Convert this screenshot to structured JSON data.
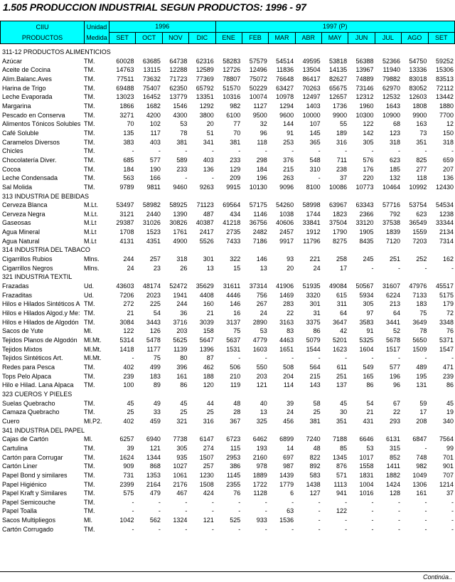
{
  "title": "1.505  PRODUCCION  INDUSTRIAL  SEGUN PRODUCTOS:  1996 - 97",
  "header": {
    "ciiu": "CIIU",
    "productos": "PRODUCTOS",
    "unidad": "Unidad",
    "medida": "Medida",
    "year1": "1996",
    "year2": "1997 (P)",
    "months": [
      "SET",
      "OCT",
      "NOV",
      "DIC",
      "ENE",
      "FEB",
      "MAR",
      "ABR",
      "MAY",
      "JUN",
      "JUL",
      "AGO",
      "SET"
    ]
  },
  "sections": [
    {
      "title": "311-12 PRODUCTOS ALIMENTICIOS",
      "rows": [
        {
          "name": "Azúcar",
          "unit": "TM.",
          "values": [
            "60028",
            "63685",
            "64738",
            "62316",
            "58283",
            "57579",
            "54514",
            "49595",
            "53818",
            "56388",
            "52366",
            "54750",
            "59252"
          ]
        },
        {
          "name": "Aceite de Cocina",
          "unit": "TM.",
          "values": [
            "14763",
            "13115",
            "12288",
            "12589",
            "12726",
            "12496",
            "11836",
            "13504",
            "14135",
            "13967",
            "11940",
            "13336",
            "15306"
          ]
        },
        {
          "name": "Alim.Balanc.Aves",
          "unit": "TM.",
          "values": [
            "77511",
            "73632",
            "71723",
            "77369",
            "78807",
            "75072",
            "76648",
            "86417",
            "82627",
            "74889",
            "79882",
            "83018",
            "83513"
          ]
        },
        {
          "name": "Harina de Trigo",
          "unit": "TM.",
          "values": [
            "69488",
            "75407",
            "62350",
            "65792",
            "51570",
            "50229",
            "63427",
            "70263",
            "65675",
            "73146",
            "62970",
            "83052",
            "72112"
          ]
        },
        {
          "name": "Leche Evaporada",
          "unit": "TM.",
          "values": [
            "13023",
            "16452",
            "13779",
            "13351",
            "10316",
            "10074",
            "10978",
            "12497",
            "12657",
            "12312",
            "12532",
            "12603",
            "13442"
          ]
        },
        {
          "name": "Margarina",
          "unit": "TM.",
          "values": [
            "1866",
            "1682",
            "1546",
            "1292",
            "982",
            "1127",
            "1294",
            "1403",
            "1736",
            "1960",
            "1643",
            "1808",
            "1880"
          ]
        },
        {
          "name": "Pescado en Conserva",
          "unit": "TM.",
          "values": [
            "3271",
            "4200",
            "4300",
            "3800",
            "6100",
            "9500",
            "9600",
            "10000",
            "9900",
            "10300",
            "10900",
            "9900",
            "7700"
          ]
        },
        {
          "name": "Alimentos Tónicos Solubles",
          "unit": "TM.",
          "values": [
            "70",
            "102",
            "53",
            "20",
            "77",
            "32",
            "144",
            "107",
            "55",
            "122",
            "68",
            "163",
            "12"
          ]
        },
        {
          "name": "Café Soluble",
          "unit": "TM.",
          "values": [
            "135",
            "117",
            "78",
            "51",
            "70",
            "96",
            "91",
            "145",
            "189",
            "142",
            "123",
            "73",
            "150"
          ]
        },
        {
          "name": "Caramelos Diversos",
          "unit": "TM.",
          "values": [
            "383",
            "403",
            "381",
            "341",
            "381",
            "118",
            "253",
            "365",
            "316",
            "305",
            "318",
            "351",
            "318"
          ]
        },
        {
          "name": "Chicles",
          "unit": "TM.",
          "values": [
            "-",
            "-",
            "-",
            "-",
            "-",
            "-",
            "-",
            "-",
            "-",
            "-",
            "-",
            "-",
            "-"
          ]
        },
        {
          "name": "Chocolatería Diver.",
          "unit": "TM.",
          "values": [
            "685",
            "577",
            "589",
            "403",
            "233",
            "298",
            "376",
            "548",
            "711",
            "576",
            "623",
            "825",
            "659"
          ]
        },
        {
          "name": "Cocoa",
          "unit": "TM.",
          "values": [
            "184",
            "190",
            "233",
            "136",
            "129",
            "184",
            "215",
            "310",
            "238",
            "176",
            "185",
            "277",
            "207"
          ]
        },
        {
          "name": "Leche Condensada",
          "unit": "TM.",
          "values": [
            "563",
            "166",
            "-",
            "-",
            "209",
            "196",
            "263",
            "-",
            "37",
            "220",
            "132",
            "118",
            "136"
          ]
        },
        {
          "name": "Sal Molida",
          "unit": "TM.",
          "values": [
            "9789",
            "9811",
            "9460",
            "9263",
            "9915",
            "10130",
            "9096",
            "8100",
            "10086",
            "10773",
            "10464",
            "10992",
            "12430"
          ]
        }
      ]
    },
    {
      "title": "313 INDUSTRIA DE BEBIDAS",
      "rows": [
        {
          "name": "Cerveza Blanca",
          "unit": "M.Lt.",
          "values": [
            "53497",
            "58982",
            "58925",
            "71123",
            "69564",
            "57175",
            "54260",
            "58998",
            "63967",
            "63343",
            "57716",
            "53754",
            "54534"
          ]
        },
        {
          "name": "Cerveza Negra",
          "unit": "M.Lt.",
          "values": [
            "3121",
            "2440",
            "1390",
            "487",
            "434",
            "1146",
            "1038",
            "1744",
            "1823",
            "2366",
            "792",
            "623",
            "1238"
          ]
        },
        {
          "name": "Gaseosas",
          "unit": "M.Lt",
          "values": [
            "29387",
            "31026",
            "30826",
            "40387",
            "41218",
            "36756",
            "40606",
            "33841",
            "37504",
            "33120",
            "37538",
            "36549",
            "33344"
          ]
        },
        {
          "name": "Agua Mineral",
          "unit": "M.Lt",
          "values": [
            "1708",
            "1523",
            "1761",
            "2417",
            "2735",
            "2482",
            "2457",
            "1912",
            "1790",
            "1905",
            "1839",
            "1559",
            "2134"
          ]
        },
        {
          "name": "Agua Natural",
          "unit": "M.Lt",
          "values": [
            "4131",
            "4351",
            "4900",
            "5526",
            "7433",
            "7186",
            "9917",
            "11796",
            "8275",
            "8435",
            "7120",
            "7203",
            "7314"
          ]
        }
      ]
    },
    {
      "title": "314 INDUSTRIA DEL TABACO",
      "rows": [
        {
          "name": "Cigarrillos Rubios",
          "unit": "Mlns.",
          "values": [
            "244",
            "257",
            "318",
            "301",
            "322",
            "146",
            "93",
            "221",
            "258",
            "245",
            "251",
            "252",
            "162"
          ]
        },
        {
          "name": "Cigarrillos Negros",
          "unit": "Mlns.",
          "values": [
            "24",
            "23",
            "26",
            "13",
            "15",
            "13",
            "20",
            "24",
            "17",
            "-",
            "-",
            "-",
            "-"
          ]
        }
      ]
    },
    {
      "title": "321 INDUSTRIA TEXTIL",
      "rows": [
        {
          "name": "Frazadas",
          "unit": "Ud.",
          "values": [
            "43603",
            "48174",
            "52472",
            "35629",
            "31611",
            "37314",
            "41906",
            "51935",
            "49084",
            "50567",
            "31607",
            "47976",
            "45517"
          ]
        },
        {
          "name": "Frazaditas",
          "unit": "Ud.",
          "values": [
            "7206",
            "2023",
            "1941",
            "4408",
            "4446",
            "756",
            "1469",
            "3320",
            "615",
            "5934",
            "6224",
            "7133",
            "5175"
          ]
        },
        {
          "name": "Hilos e Hilados Sintéticos A",
          "unit": "TM.",
          "values": [
            "272",
            "225",
            "244",
            "160",
            "146",
            "267",
            "283",
            "301",
            "311",
            "305",
            "213",
            "183",
            "179"
          ]
        },
        {
          "name": "Hilos e Hilados Algod.y Me:",
          "unit": "TM.",
          "values": [
            "21",
            "54",
            "36",
            "21",
            "16",
            "24",
            "22",
            "31",
            "64",
            "97",
            "64",
            "75",
            "72"
          ]
        },
        {
          "name": "Hilos e Hilados de Algodón",
          "unit": "TM.",
          "values": [
            "3084",
            "3443",
            "3716",
            "3039",
            "3137",
            "2890",
            "3163",
            "3375",
            "3647",
            "3583",
            "3441",
            "3649",
            "3348"
          ]
        },
        {
          "name": "Sacos de Yute",
          "unit": "Ml.",
          "values": [
            "122",
            "126",
            "203",
            "158",
            "75",
            "53",
            "83",
            "86",
            "42",
            "91",
            "52",
            "78",
            "76"
          ]
        },
        {
          "name": "Tejidos Planos de Algodón",
          "unit": "Ml.Mt.",
          "values": [
            "5314",
            "5478",
            "5625",
            "5647",
            "5637",
            "4779",
            "4463",
            "5079",
            "5201",
            "5325",
            "5678",
            "5650",
            "5371"
          ]
        },
        {
          "name": "Tejidos Mixtos",
          "unit": "Ml.Mt.",
          "values": [
            "1418",
            "1177",
            "1139",
            "1396",
            "1531",
            "1603",
            "1651",
            "1544",
            "1623",
            "1604",
            "1517",
            "1509",
            "1547"
          ]
        },
        {
          "name": "Tejidos Sintéticos Art.",
          "unit": "Ml.Mt.",
          "values": [
            "-",
            "75",
            "80",
            "87",
            "-",
            "-",
            "-",
            "-",
            "-",
            "-",
            "-",
            "-",
            "-"
          ]
        },
        {
          "name": "Redes para Pesca",
          "unit": "TM.",
          "values": [
            "402",
            "499",
            "396",
            "462",
            "506",
            "550",
            "508",
            "564",
            "611",
            "549",
            "577",
            "489",
            "471"
          ]
        },
        {
          "name": "Tops Pelo Alpaca",
          "unit": "TM.",
          "values": [
            "239",
            "183",
            "161",
            "188",
            "210",
            "203",
            "204",
            "215",
            "251",
            "165",
            "196",
            "195",
            "239"
          ]
        },
        {
          "name": "Hilo e Hilad. Lana Alpaca",
          "unit": "TM.",
          "values": [
            "100",
            "89",
            "86",
            "120",
            "119",
            "121",
            "114",
            "143",
            "137",
            "86",
            "96",
            "131",
            "86"
          ]
        }
      ]
    },
    {
      "title": "323 CUEROS Y PIELES",
      "rows": [
        {
          "name": "Suelas Quebracho",
          "unit": "TM.",
          "values": [
            "45",
            "49",
            "45",
            "44",
            "48",
            "40",
            "39",
            "58",
            "45",
            "54",
            "67",
            "59",
            "45"
          ]
        },
        {
          "name": "Camaza Quebracho",
          "unit": "TM.",
          "values": [
            "25",
            "33",
            "25",
            "25",
            "28",
            "13",
            "24",
            "25",
            "30",
            "21",
            "22",
            "17",
            "19"
          ]
        },
        {
          "name": "Cuero",
          "unit": "Ml.P2.",
          "values": [
            "402",
            "459",
            "321",
            "316",
            "367",
            "325",
            "456",
            "381",
            "351",
            "431",
            "293",
            "208",
            "340"
          ]
        }
      ]
    },
    {
      "title": "341 INDUSTRIA DEL PAPEL",
      "rows": [
        {
          "name": "Cajas de Cartón",
          "unit": "Ml.",
          "values": [
            "6257",
            "6940",
            "7738",
            "6147",
            "6723",
            "6462",
            "6899",
            "7240",
            "7188",
            "6646",
            "6131",
            "6847",
            "7564"
          ]
        },
        {
          "name": "Cartulina",
          "unit": "TM.",
          "values": [
            "39",
            "121",
            "305",
            "274",
            "115",
            "193",
            "14",
            "48",
            "85",
            "53",
            "315",
            "-",
            "99"
          ]
        },
        {
          "name": "Cartón para Corrugar",
          "unit": "TM.",
          "values": [
            "1624",
            "1344",
            "935",
            "1507",
            "2953",
            "2160",
            "697",
            "822",
            "1345",
            "1017",
            "852",
            "748",
            "701"
          ]
        },
        {
          "name": "Cartón Liner",
          "unit": "TM.",
          "values": [
            "909",
            "868",
            "1027",
            "257",
            "386",
            "978",
            "987",
            "892",
            "876",
            "1558",
            "1411",
            "982",
            "901"
          ]
        },
        {
          "name": "Papel Bond y similares",
          "unit": "TM.",
          "values": [
            "731",
            "1353",
            "1061",
            "1230",
            "1145",
            "1889",
            "1439",
            "583",
            "571",
            "1831",
            "1882",
            "1049",
            "707"
          ]
        },
        {
          "name": "Papel Higiénico",
          "unit": "TM.",
          "values": [
            "2399",
            "2164",
            "2176",
            "1508",
            "2355",
            "1722",
            "1779",
            "1438",
            "1113",
            "1004",
            "1424",
            "1306",
            "1214"
          ]
        },
        {
          "name": "Papel Kraft y Similares",
          "unit": "TM.",
          "values": [
            "575",
            "479",
            "467",
            "424",
            "76",
            "1128",
            "6",
            "127",
            "941",
            "1016",
            "128",
            "161",
            "37"
          ]
        },
        {
          "name": "Papel Semicouche",
          "unit": "TM.",
          "values": [
            "-",
            "-",
            "-",
            "-",
            "-",
            "-",
            "-",
            "-",
            "-",
            "-",
            "-",
            "-",
            "-"
          ]
        },
        {
          "name": "Papel Toalla",
          "unit": "TM.",
          "values": [
            "-",
            "-",
            "-",
            "-",
            "-",
            "-",
            "63",
            "-",
            "122",
            "-",
            "-",
            "-",
            "-"
          ]
        },
        {
          "name": "Sacos Multipliegos",
          "unit": "Ml.",
          "values": [
            "1042",
            "562",
            "1324",
            "121",
            "525",
            "933",
            "1536",
            "-",
            "-",
            "-",
            "-",
            "-",
            "-"
          ]
        },
        {
          "name": "Cartón Corrugado",
          "unit": "TM.",
          "values": [
            "-",
            "-",
            "-",
            "-",
            "-",
            "-",
            "-",
            "-",
            "-",
            "-",
            "-",
            "-",
            "-"
          ]
        }
      ]
    }
  ],
  "footer": "Continúa.."
}
